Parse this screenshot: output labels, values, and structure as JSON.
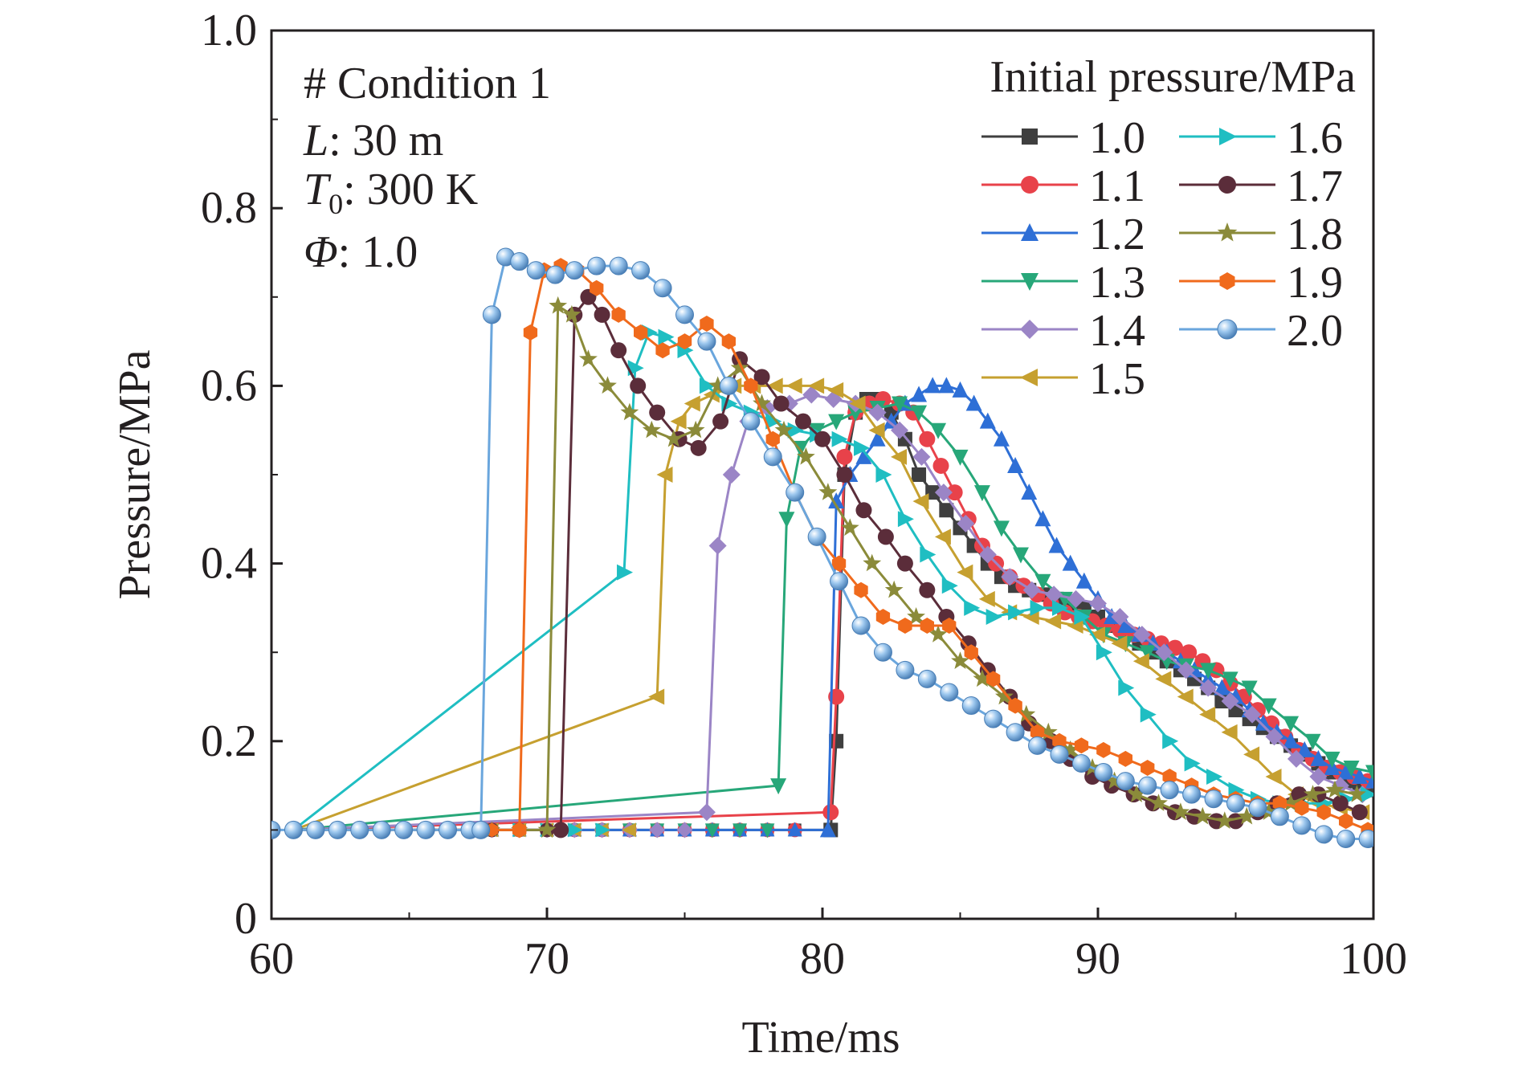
{
  "chart_data": {
    "type": "line",
    "xlabel": "Time/ms",
    "ylabel": "Pressure/MPa",
    "xlim": [
      60,
      100
    ],
    "ylim": [
      0,
      1.0
    ],
    "xticks": [
      "60",
      "70",
      "80",
      "90",
      "100"
    ],
    "yticks": [
      "0",
      "0.2",
      "0.4",
      "0.6",
      "0.8",
      "1.0"
    ],
    "grid": false,
    "legend_title": "Initial pressure/MPa",
    "legend_position": "top-right",
    "annotation": {
      "line1": "# Condition 1",
      "line2_var": "L",
      "line2_val": ": 30 m",
      "line3_var": "T",
      "line3_sub": "0",
      "line3_val": ": 300 K",
      "line4_var": "Φ",
      "line4_val": ": 1.0"
    },
    "series": [
      {
        "name": "1.0",
        "color": "#3f3f3f",
        "marker": "square",
        "x": [
          80.3,
          80.5,
          80.8,
          81.2,
          81.6,
          82,
          82.5,
          83,
          83.5,
          84,
          84.5,
          85,
          85.5,
          86,
          86.5,
          87,
          87.5,
          88,
          88.5,
          89,
          89.5,
          90,
          90.5,
          91,
          91.5,
          92,
          92.5,
          93,
          93.5,
          94,
          94.5,
          95,
          95.5,
          96,
          96.5,
          97,
          97.5,
          98,
          98.5,
          99,
          99.5,
          100
        ],
        "y": [
          0.1,
          0.2,
          0.5,
          0.57,
          0.585,
          0.585,
          0.57,
          0.54,
          0.5,
          0.48,
          0.46,
          0.44,
          0.42,
          0.4,
          0.385,
          0.375,
          0.37,
          0.365,
          0.36,
          0.355,
          0.35,
          0.34,
          0.33,
          0.32,
          0.31,
          0.3,
          0.29,
          0.28,
          0.27,
          0.26,
          0.245,
          0.235,
          0.225,
          0.215,
          0.205,
          0.195,
          0.185,
          0.175,
          0.165,
          0.155,
          0.15,
          0.145
        ]
      },
      {
        "name": "1.1",
        "color": "#e8424a",
        "marker": "circle",
        "x": [
          80.3,
          80.5,
          80.8,
          81.2,
          81.7,
          82.2,
          82.8,
          83.3,
          83.8,
          84.3,
          84.8,
          85.3,
          85.8,
          86.3,
          86.8,
          87.3,
          87.8,
          88.3,
          88.8,
          89.3,
          89.8,
          90.3,
          90.8,
          91.3,
          91.8,
          92.3,
          92.8,
          93.3,
          93.8,
          94.3,
          94.8,
          95.3,
          95.8,
          96.3,
          96.8,
          97.3,
          97.8,
          98.3,
          98.8,
          99.3,
          99.8
        ],
        "y": [
          0.12,
          0.25,
          0.52,
          0.57,
          0.58,
          0.585,
          0.58,
          0.57,
          0.54,
          0.51,
          0.48,
          0.45,
          0.42,
          0.4,
          0.385,
          0.375,
          0.365,
          0.355,
          0.345,
          0.34,
          0.335,
          0.33,
          0.325,
          0.32,
          0.315,
          0.31,
          0.305,
          0.3,
          0.29,
          0.28,
          0.265,
          0.25,
          0.235,
          0.22,
          0.205,
          0.19,
          0.18,
          0.17,
          0.165,
          0.16,
          0.155
        ]
      },
      {
        "name": "1.2",
        "color": "#2e6fd6",
        "marker": "triangle-up",
        "x": [
          80.2,
          80.5,
          81,
          81.5,
          82,
          82.5,
          83,
          83.5,
          84,
          84.5,
          85,
          85.5,
          86,
          86.5,
          87,
          87.5,
          88,
          88.5,
          89,
          89.5,
          90,
          90.5,
          91,
          91.5,
          92,
          92.5,
          93,
          93.5,
          94,
          94.5,
          95,
          95.5,
          96,
          96.5,
          97,
          97.5,
          98,
          98.5,
          99,
          99.5,
          100
        ],
        "y": [
          0.1,
          0.47,
          0.5,
          0.52,
          0.54,
          0.56,
          0.58,
          0.59,
          0.6,
          0.6,
          0.595,
          0.58,
          0.56,
          0.54,
          0.51,
          0.48,
          0.45,
          0.42,
          0.4,
          0.38,
          0.36,
          0.34,
          0.33,
          0.32,
          0.31,
          0.3,
          0.29,
          0.28,
          0.27,
          0.26,
          0.25,
          0.235,
          0.22,
          0.21,
          0.2,
          0.19,
          0.18,
          0.17,
          0.165,
          0.16,
          0.155
        ]
      },
      {
        "name": "1.3",
        "color": "#27a779",
        "marker": "triangle-down",
        "x": [
          78.4,
          78.7,
          79.2,
          79.8,
          80.5,
          81.2,
          82,
          82.8,
          83.5,
          84.2,
          85,
          85.8,
          86.5,
          87.2,
          88,
          88.8,
          89.5,
          90.2,
          91,
          91.8,
          92.5,
          93.2,
          94,
          94.8,
          95.5,
          96.2,
          97,
          97.8,
          98.5,
          99.2,
          100
        ],
        "y": [
          0.15,
          0.45,
          0.53,
          0.55,
          0.56,
          0.57,
          0.575,
          0.58,
          0.57,
          0.55,
          0.52,
          0.48,
          0.44,
          0.41,
          0.38,
          0.36,
          0.34,
          0.32,
          0.31,
          0.3,
          0.29,
          0.285,
          0.28,
          0.27,
          0.26,
          0.24,
          0.22,
          0.2,
          0.18,
          0.17,
          0.165
        ]
      },
      {
        "name": "1.4",
        "color": "#9b85c6",
        "marker": "diamond",
        "x": [
          75.8,
          76.2,
          76.7,
          77.3,
          78,
          78.8,
          79.6,
          80.4,
          81.2,
          82,
          82.8,
          83.6,
          84.4,
          85.2,
          86,
          86.8,
          87.6,
          88.4,
          89.2,
          90,
          90.8,
          91.6,
          92.4,
          93.2,
          94,
          94.8,
          95.6,
          96.4,
          97.2,
          98,
          98.8,
          99.6
        ],
        "y": [
          0.12,
          0.42,
          0.5,
          0.56,
          0.575,
          0.58,
          0.59,
          0.585,
          0.58,
          0.57,
          0.55,
          0.52,
          0.48,
          0.445,
          0.41,
          0.385,
          0.37,
          0.365,
          0.36,
          0.355,
          0.34,
          0.32,
          0.3,
          0.28,
          0.26,
          0.245,
          0.23,
          0.205,
          0.18,
          0.16,
          0.15,
          0.14
        ]
      },
      {
        "name": "1.5",
        "color": "#c6a030",
        "marker": "triangle-left",
        "x": [
          74,
          74.3,
          74.8,
          75.3,
          76,
          76.8,
          77.5,
          78.3,
          79,
          79.8,
          80.5,
          81.3,
          82,
          82.8,
          83.6,
          84.4,
          85.2,
          86,
          86.8,
          87.6,
          88.4,
          89.2,
          90,
          90.8,
          91.6,
          92.4,
          93.2,
          94,
          94.8,
          95.6,
          96.4,
          97.2,
          98,
          98.8,
          99.6
        ],
        "y": [
          0.25,
          0.5,
          0.56,
          0.58,
          0.59,
          0.6,
          0.6,
          0.6,
          0.6,
          0.6,
          0.595,
          0.58,
          0.55,
          0.52,
          0.47,
          0.43,
          0.39,
          0.36,
          0.345,
          0.34,
          0.335,
          0.33,
          0.32,
          0.31,
          0.29,
          0.27,
          0.25,
          0.23,
          0.21,
          0.185,
          0.16,
          0.14,
          0.13,
          0.125,
          0.12
        ]
      },
      {
        "name": "1.6",
        "color": "#1fbec2",
        "marker": "triangle-right",
        "x": [
          72.8,
          73.2,
          73.7,
          74.3,
          75,
          75.8,
          76.6,
          77.4,
          78.2,
          79,
          79.8,
          80.6,
          81.4,
          82.2,
          83,
          83.8,
          84.6,
          85.4,
          86.2,
          87,
          87.8,
          88.6,
          89.4,
          90.2,
          91,
          91.8,
          92.6,
          93.4,
          94.2,
          95,
          95.8,
          96.6,
          97.4,
          98.2,
          99,
          99.8
        ],
        "y": [
          0.39,
          0.62,
          0.66,
          0.655,
          0.64,
          0.6,
          0.58,
          0.57,
          0.56,
          0.55,
          0.545,
          0.54,
          0.53,
          0.5,
          0.45,
          0.41,
          0.375,
          0.35,
          0.34,
          0.345,
          0.35,
          0.35,
          0.34,
          0.3,
          0.26,
          0.23,
          0.2,
          0.175,
          0.16,
          0.145,
          0.135,
          0.13,
          0.13,
          0.13,
          0.135,
          0.14
        ]
      },
      {
        "name": "1.7",
        "color": "#5b2d3a",
        "marker": "circle",
        "x": [
          70.5,
          71,
          71.5,
          72,
          72.6,
          73.3,
          74,
          74.8,
          75.5,
          76.3,
          77,
          77.8,
          78.5,
          79.3,
          80,
          80.8,
          81.5,
          82.3,
          83,
          83.8,
          84.5,
          85.3,
          86,
          86.8,
          87.5,
          88.3,
          89,
          89.8,
          90.5,
          91.3,
          92,
          92.8,
          93.5,
          94.3,
          95,
          95.8,
          96.5,
          97.3,
          98,
          98.8,
          99.5
        ],
        "y": [
          0.1,
          0.68,
          0.7,
          0.68,
          0.64,
          0.6,
          0.57,
          0.54,
          0.53,
          0.56,
          0.63,
          0.61,
          0.58,
          0.56,
          0.54,
          0.5,
          0.46,
          0.43,
          0.4,
          0.37,
          0.34,
          0.31,
          0.28,
          0.25,
          0.22,
          0.2,
          0.18,
          0.16,
          0.15,
          0.14,
          0.13,
          0.12,
          0.115,
          0.11,
          0.11,
          0.12,
          0.13,
          0.14,
          0.14,
          0.13,
          0.12
        ]
      },
      {
        "name": "1.8",
        "color": "#8b8b3a",
        "marker": "star",
        "x": [
          70,
          70.4,
          70.9,
          71.5,
          72.2,
          73,
          73.8,
          74.6,
          75.4,
          76.2,
          77,
          77.8,
          78.6,
          79.4,
          80.2,
          81,
          81.8,
          82.6,
          83.4,
          84.2,
          85,
          85.8,
          86.6,
          87.4,
          88.2,
          89,
          89.8,
          90.6,
          91.4,
          92.2,
          93,
          93.8,
          94.6,
          95.4,
          96.2,
          97,
          97.8,
          98.6,
          99.4
        ],
        "y": [
          0.1,
          0.69,
          0.68,
          0.63,
          0.6,
          0.57,
          0.55,
          0.54,
          0.55,
          0.6,
          0.62,
          0.58,
          0.55,
          0.52,
          0.48,
          0.44,
          0.4,
          0.37,
          0.34,
          0.32,
          0.29,
          0.27,
          0.25,
          0.23,
          0.21,
          0.19,
          0.17,
          0.155,
          0.14,
          0.13,
          0.12,
          0.115,
          0.11,
          0.115,
          0.12,
          0.13,
          0.14,
          0.145,
          0.14
        ]
      },
      {
        "name": "1.9",
        "color": "#f06a1c",
        "marker": "hexagon",
        "x": [
          69,
          69.4,
          69.9,
          70.5,
          71.1,
          71.8,
          72.6,
          73.4,
          74.2,
          75,
          75.8,
          76.6,
          77.4,
          78.2,
          79,
          79.8,
          80.6,
          81.4,
          82.2,
          83,
          83.8,
          84.6,
          85.4,
          86.2,
          87,
          87.8,
          88.6,
          89.4,
          90.2,
          91,
          91.8,
          92.6,
          93.4,
          94.2,
          95,
          95.8,
          96.6,
          97.4,
          98.2,
          99,
          99.8
        ],
        "y": [
          0.1,
          0.66,
          0.73,
          0.735,
          0.73,
          0.71,
          0.68,
          0.66,
          0.64,
          0.65,
          0.67,
          0.65,
          0.6,
          0.54,
          0.48,
          0.43,
          0.4,
          0.37,
          0.34,
          0.33,
          0.33,
          0.33,
          0.3,
          0.27,
          0.24,
          0.21,
          0.2,
          0.195,
          0.19,
          0.18,
          0.17,
          0.16,
          0.15,
          0.14,
          0.135,
          0.13,
          0.13,
          0.125,
          0.12,
          0.11,
          0.1
        ]
      },
      {
        "name": "2.0",
        "color": "#6aa6dd",
        "marker": "sphere",
        "x": [
          60,
          60.8,
          61.6,
          62.4,
          63.2,
          64,
          64.8,
          65.6,
          66.4,
          67.2,
          67.6,
          68,
          68.5,
          69,
          69.6,
          70.3,
          71,
          71.8,
          72.6,
          73.4,
          74.2,
          75,
          75.8,
          76.6,
          77.4,
          78.2,
          79,
          79.8,
          80.6,
          81.4,
          82.2,
          83,
          83.8,
          84.6,
          85.4,
          86.2,
          87,
          87.8,
          88.6,
          89.4,
          90.2,
          91,
          91.8,
          92.6,
          93.4,
          94.2,
          95,
          95.8,
          96.6,
          97.4,
          98.2,
          99,
          99.8
        ],
        "y": [
          0.1,
          0.1,
          0.1,
          0.1,
          0.1,
          0.1,
          0.1,
          0.1,
          0.1,
          0.1,
          0.1,
          0.68,
          0.745,
          0.74,
          0.73,
          0.725,
          0.73,
          0.735,
          0.735,
          0.73,
          0.71,
          0.68,
          0.65,
          0.6,
          0.56,
          0.52,
          0.48,
          0.43,
          0.38,
          0.33,
          0.3,
          0.28,
          0.27,
          0.255,
          0.24,
          0.225,
          0.21,
          0.195,
          0.185,
          0.175,
          0.165,
          0.155,
          0.15,
          0.145,
          0.14,
          0.135,
          0.13,
          0.125,
          0.115,
          0.105,
          0.095,
          0.09,
          0.09
        ]
      }
    ]
  }
}
